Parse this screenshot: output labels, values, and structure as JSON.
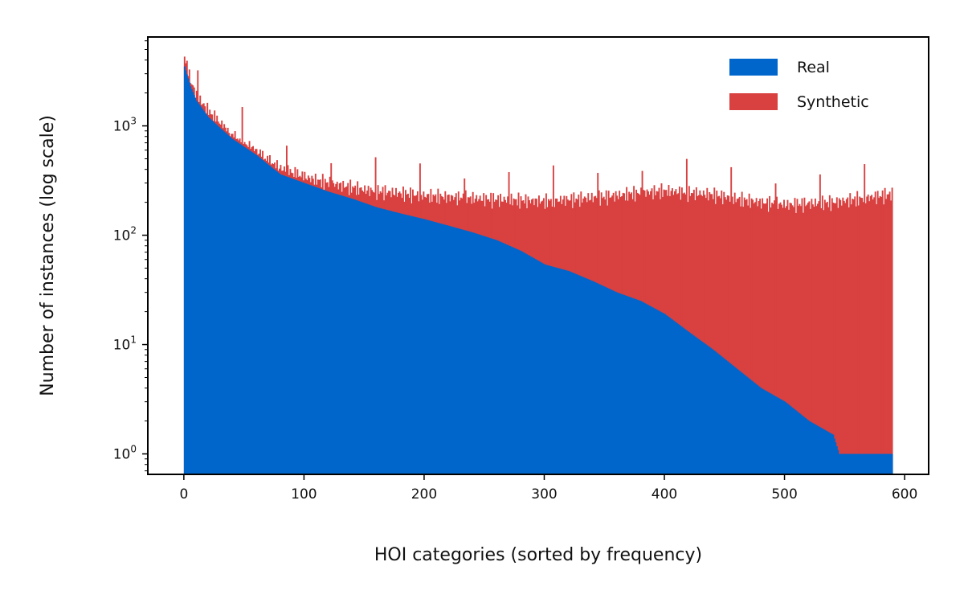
{
  "chart_data": {
    "type": "bar",
    "xlabel": "HOI categories (sorted by frequency)",
    "ylabel": "Number of instances (log scale)",
    "xlim": [
      -30,
      620
    ],
    "ylim": [
      0.65,
      6500
    ],
    "yscale": "log",
    "grid": false,
    "legend_position": "top-right",
    "x_ticks": [
      0,
      100,
      200,
      300,
      400,
      500,
      600
    ],
    "y_ticks": [
      {
        "value": 1,
        "base": "10",
        "exp": "0"
      },
      {
        "value": 10,
        "base": "10",
        "exp": "1"
      },
      {
        "value": 100,
        "base": "10",
        "exp": "2"
      },
      {
        "value": 1000,
        "base": "10",
        "exp": "3"
      }
    ],
    "n_categories": 590,
    "series": [
      {
        "name": "Real",
        "color": "#0066cc",
        "values_description_points": [
          [
            0,
            3500
          ],
          [
            5,
            2300
          ],
          [
            10,
            1700
          ],
          [
            20,
            1200
          ],
          [
            30,
            950
          ],
          [
            40,
            760
          ],
          [
            50,
            640
          ],
          [
            60,
            540
          ],
          [
            70,
            440
          ],
          [
            80,
            360
          ],
          [
            100,
            300
          ],
          [
            120,
            250
          ],
          [
            140,
            215
          ],
          [
            160,
            180
          ],
          [
            180,
            158
          ],
          [
            200,
            140
          ],
          [
            220,
            122
          ],
          [
            240,
            106
          ],
          [
            260,
            90
          ],
          [
            280,
            72
          ],
          [
            300,
            54
          ],
          [
            320,
            47
          ],
          [
            340,
            38
          ],
          [
            360,
            30
          ],
          [
            380,
            25
          ],
          [
            400,
            19
          ],
          [
            420,
            13
          ],
          [
            440,
            9
          ],
          [
            460,
            6
          ],
          [
            480,
            4
          ],
          [
            500,
            3
          ],
          [
            520,
            2
          ],
          [
            540,
            1.5
          ],
          [
            545,
            1
          ],
          [
            590,
            1
          ]
        ]
      },
      {
        "name": "Synthetic",
        "color": "#d94040",
        "values_description_points": [
          [
            0,
            4300
          ],
          [
            5,
            2600
          ],
          [
            10,
            1900
          ],
          [
            20,
            1350
          ],
          [
            30,
            1050
          ],
          [
            40,
            800
          ],
          [
            50,
            680
          ],
          [
            60,
            590
          ],
          [
            70,
            470
          ],
          [
            80,
            410
          ],
          [
            90,
            370
          ],
          [
            100,
            340
          ],
          [
            120,
            300
          ],
          [
            150,
            260
          ],
          [
            200,
            230
          ],
          [
            250,
            215
          ],
          [
            300,
            205
          ],
          [
            350,
            225
          ],
          [
            380,
            245
          ],
          [
            400,
            255
          ],
          [
            420,
            245
          ],
          [
            440,
            235
          ],
          [
            460,
            215
          ],
          [
            480,
            200
          ],
          [
            500,
            190
          ],
          [
            520,
            195
          ],
          [
            540,
            200
          ],
          [
            560,
            215
          ],
          [
            580,
            230
          ],
          [
            590,
            240
          ]
        ]
      }
    ]
  }
}
